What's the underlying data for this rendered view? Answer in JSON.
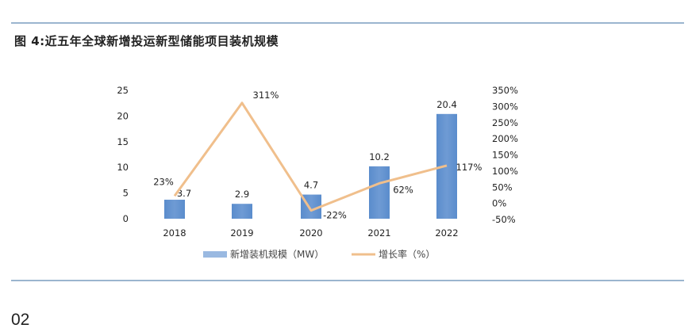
{
  "header": {
    "figure_title": "图 4:近五年全球新增投运新型储能项目装机规模"
  },
  "footer": {
    "page_number": "02"
  },
  "colors": {
    "bar": "#6f9bd4",
    "line": "#f0bf8c",
    "rule": "#9bb5cf"
  },
  "chart_data": {
    "type": "bar",
    "categories": [
      "2018",
      "2019",
      "2020",
      "2021",
      "2022"
    ],
    "series": [
      {
        "name": "新增装机规模（MW）",
        "type": "bar",
        "axis": "left",
        "values": [
          3.7,
          2.9,
          4.7,
          10.2,
          20.4
        ],
        "labels": [
          "3.7",
          "2.9",
          "4.7",
          "10.2",
          "20.4"
        ]
      },
      {
        "name": "增长率（%）",
        "type": "line",
        "axis": "right",
        "values": [
          23,
          311,
          -22,
          62,
          117
        ],
        "labels": [
          "23%",
          "311%",
          "-22%",
          "62%",
          "117%"
        ]
      }
    ],
    "y_left": {
      "ylim": [
        0,
        25
      ],
      "ticks": [
        0,
        5,
        10,
        15,
        20,
        25
      ],
      "tick_labels": [
        "0",
        "5",
        "10",
        "15",
        "20",
        "25"
      ]
    },
    "y_right": {
      "ylim": [
        -50,
        350
      ],
      "ticks": [
        -50,
        0,
        50,
        100,
        150,
        200,
        250,
        300,
        350
      ],
      "tick_labels": [
        "-50%",
        "0%",
        "50%",
        "100%",
        "150%",
        "200%",
        "250%",
        "300%",
        "350%"
      ]
    },
    "legend_position": "bottom",
    "grid": false
  }
}
